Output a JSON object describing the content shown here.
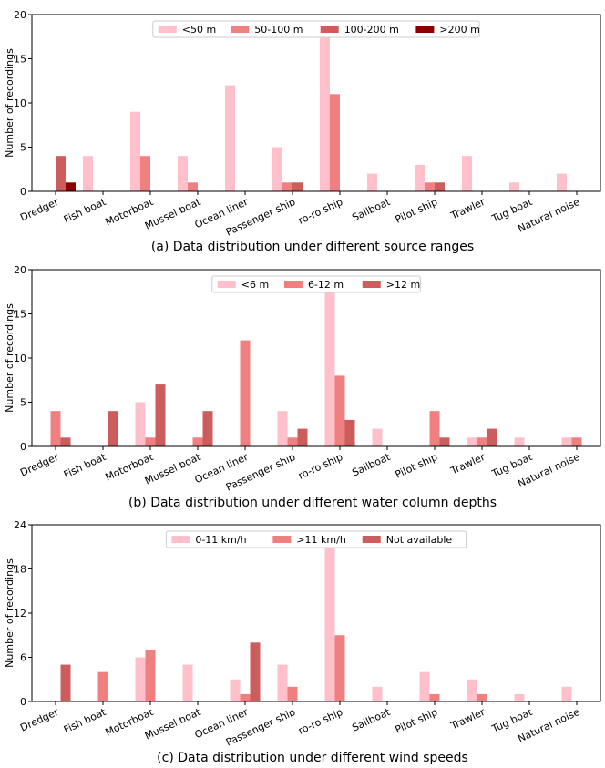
{
  "chart_data": [
    {
      "type": "bar",
      "title": "(a) Data distribution under different source ranges",
      "ylabel": "Number of recordings",
      "ylim": [
        0,
        20
      ],
      "yticks": [
        0,
        5,
        10,
        15,
        20
      ],
      "legend": "top-center",
      "grid": false,
      "categories": [
        "Dredger",
        "Fish boat",
        "Motorboat",
        "Mussel boat",
        "Ocean liner",
        "Passenger ship",
        "ro-ro ship",
        "Sailboat",
        "Pilot ship",
        "Trawler",
        "Tug boat",
        "Natural noise"
      ],
      "series": [
        {
          "name": "<50 m",
          "color": "#ffc0cb",
          "values": [
            0,
            4,
            9,
            4,
            12,
            5,
            17.5,
            2,
            3,
            4,
            1,
            2
          ]
        },
        {
          "name": "50-100 m",
          "color": "#f08080",
          "values": [
            0,
            0,
            4,
            1,
            0,
            1,
            11,
            0,
            1,
            0,
            0,
            0
          ]
        },
        {
          "name": "100-200 m",
          "color": "#cd5c5c",
          "values": [
            4,
            0,
            0,
            0,
            0,
            1,
            0,
            0,
            1,
            0,
            0,
            0
          ]
        },
        {
          "name": ">200 m",
          "color": "#8b0000",
          "values": [
            1,
            0,
            0,
            0,
            0,
            0,
            0,
            0,
            0,
            0,
            0,
            0
          ]
        }
      ]
    },
    {
      "type": "bar",
      "title": "(b) Data distribution under different water column depths",
      "ylabel": "Number of recordings",
      "ylim": [
        0,
        20
      ],
      "yticks": [
        0,
        5,
        10,
        15,
        20
      ],
      "legend": "top-center",
      "grid": false,
      "categories": [
        "Dredger",
        "Fish boat",
        "Motorboat",
        "Mussel boat",
        "Ocean liner",
        "Passenger ship",
        "ro-ro ship",
        "Sailboat",
        "Pilot ship",
        "Trawler",
        "Tug boat",
        "Natural noise"
      ],
      "series": [
        {
          "name": "<6 m",
          "color": "#ffc0cb",
          "values": [
            0,
            0,
            5,
            0,
            0,
            4,
            17.5,
            2,
            0,
            1,
            1,
            1
          ]
        },
        {
          "name": "6-12 m",
          "color": "#f08080",
          "values": [
            4,
            0,
            1,
            1,
            12,
            1,
            8,
            0,
            4,
            1,
            0,
            1
          ]
        },
        {
          "name": ">12 m",
          "color": "#cd5c5c",
          "values": [
            1,
            4,
            7,
            4,
            0,
            2,
            3,
            0,
            1,
            2,
            0,
            0
          ]
        }
      ]
    },
    {
      "type": "bar",
      "title": "(c) Data distribution under different wind speeds",
      "ylabel": "Number of recordings",
      "ylim": [
        0,
        24
      ],
      "yticks": [
        0,
        6,
        12,
        18,
        24
      ],
      "legend": "top-center",
      "grid": false,
      "categories": [
        "Dredger",
        "Fish boat",
        "Motorboat",
        "Mussel boat",
        "Ocean liner",
        "Passenger ship",
        "ro-ro ship",
        "Sailboat",
        "Pilot ship",
        "Trawler",
        "Tug boat",
        "Natural noise"
      ],
      "series": [
        {
          "name": "0-11  km/h",
          "color": "#ffc0cb",
          "values": [
            0,
            0,
            6,
            5,
            3,
            5,
            21,
            2,
            4,
            3,
            1,
            2
          ]
        },
        {
          "name": ">11 km/h",
          "color": "#f08080",
          "values": [
            0,
            4,
            7,
            0,
            1,
            2,
            9,
            0,
            1,
            1,
            0,
            0
          ]
        },
        {
          "name": "Not available",
          "color": "#cd5c5c",
          "values": [
            5,
            0,
            0,
            0,
            8,
            0,
            0,
            0,
            0,
            0,
            0,
            0
          ]
        }
      ]
    }
  ]
}
